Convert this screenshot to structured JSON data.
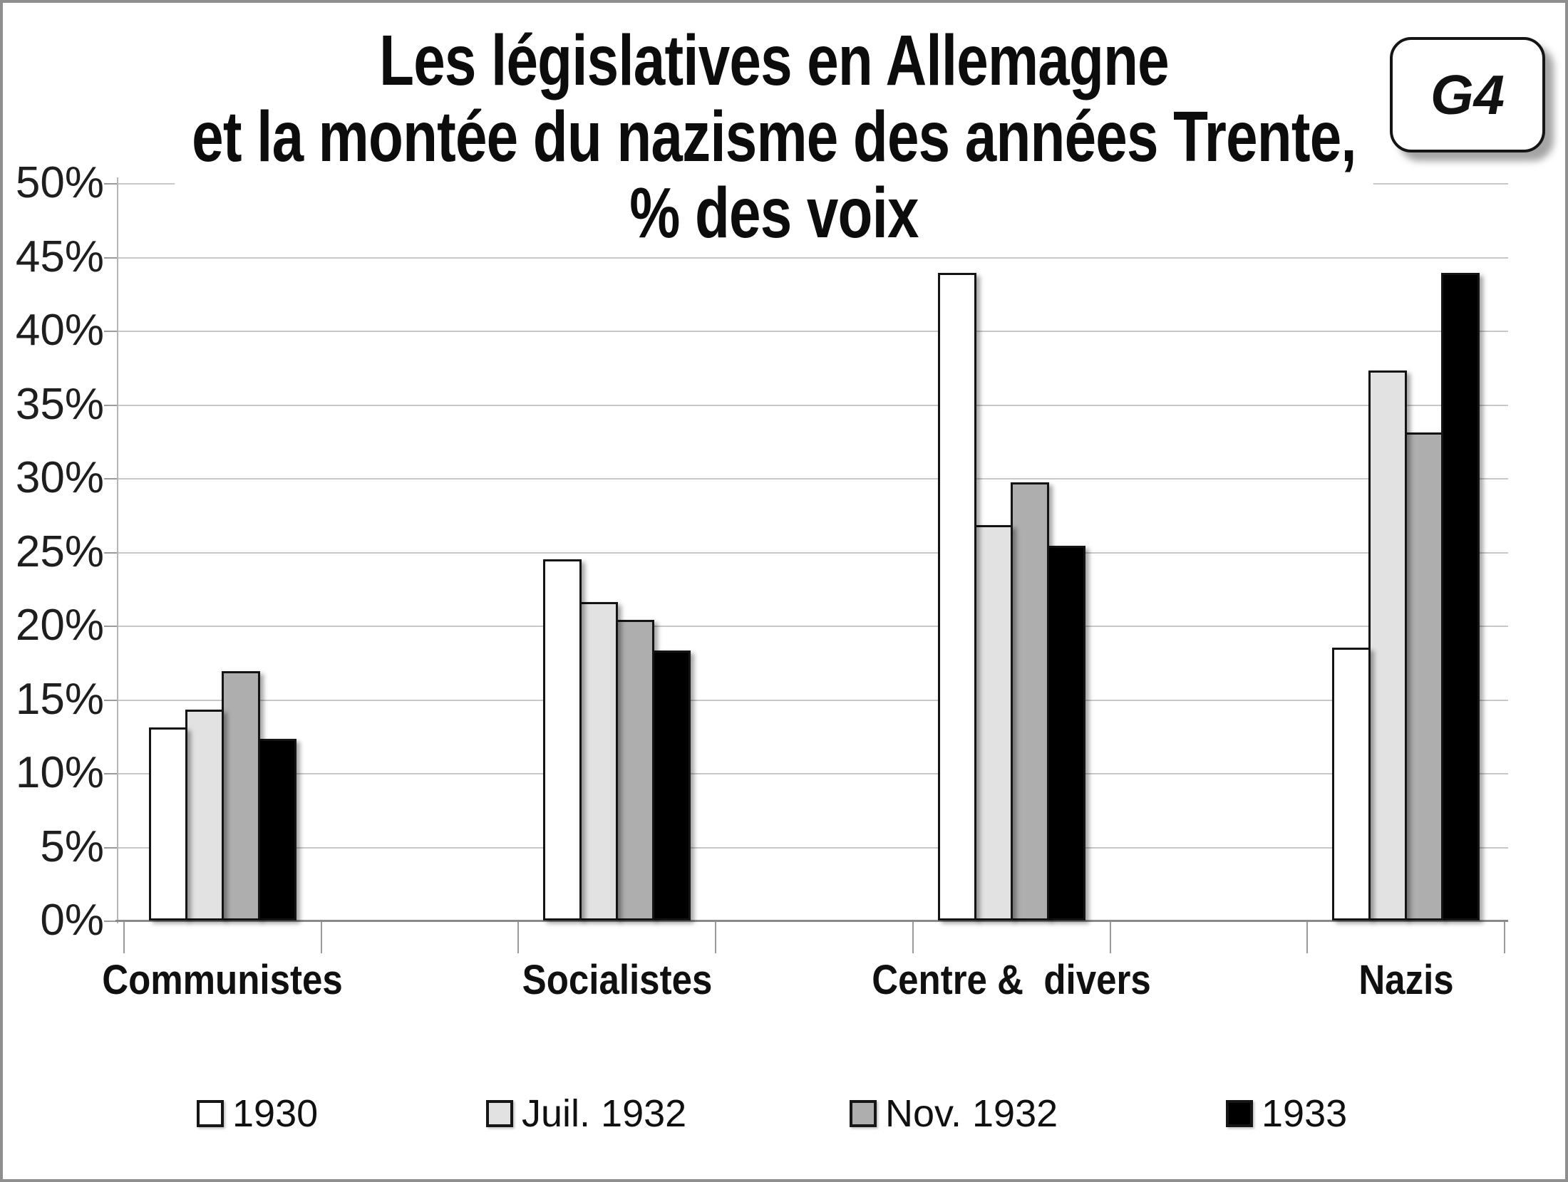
{
  "badge": {
    "label": "G4"
  },
  "title": {
    "line1": "Les législatives en Allemagne",
    "line2": "et la montée du nazisme des années Trente,",
    "line3": "% des voix"
  },
  "colors": {
    "bar_outline": "#141414",
    "gridline": "#c8c8c8",
    "axis": "#8a8a8a",
    "frame_border": "#8f8f8f",
    "background": "#ffffff"
  },
  "chart_data": {
    "type": "bar",
    "title": "Les législatives en Allemagne et la montée du nazisme des années Trente, % des voix",
    "categories": [
      "Communistes",
      "Socialistes",
      "Centre &  divers",
      "Nazis"
    ],
    "series": [
      {
        "name": "1930",
        "color": "#ffffff",
        "values": [
          13.1,
          24.5,
          43.9,
          18.5
        ]
      },
      {
        "name": "Juil. 1932",
        "color": "#e2e2e2",
        "values": [
          14.3,
          21.6,
          26.8,
          37.3
        ]
      },
      {
        "name": "Nov. 1932",
        "color": "#aeaeae",
        "values": [
          16.9,
          20.4,
          29.7,
          33.1
        ]
      },
      {
        "name": "1933",
        "color": "#000000",
        "values": [
          12.3,
          18.3,
          25.4,
          43.9
        ]
      }
    ],
    "xlabel": "",
    "ylabel": "",
    "ylim": [
      0,
      50
    ],
    "ytick_step": 5,
    "ytick_labels": [
      "0%",
      "5%",
      "10%",
      "15%",
      "20%",
      "25%",
      "30%",
      "35%",
      "40%",
      "45%",
      "50%"
    ],
    "grid": true,
    "legend_position": "bottom"
  }
}
